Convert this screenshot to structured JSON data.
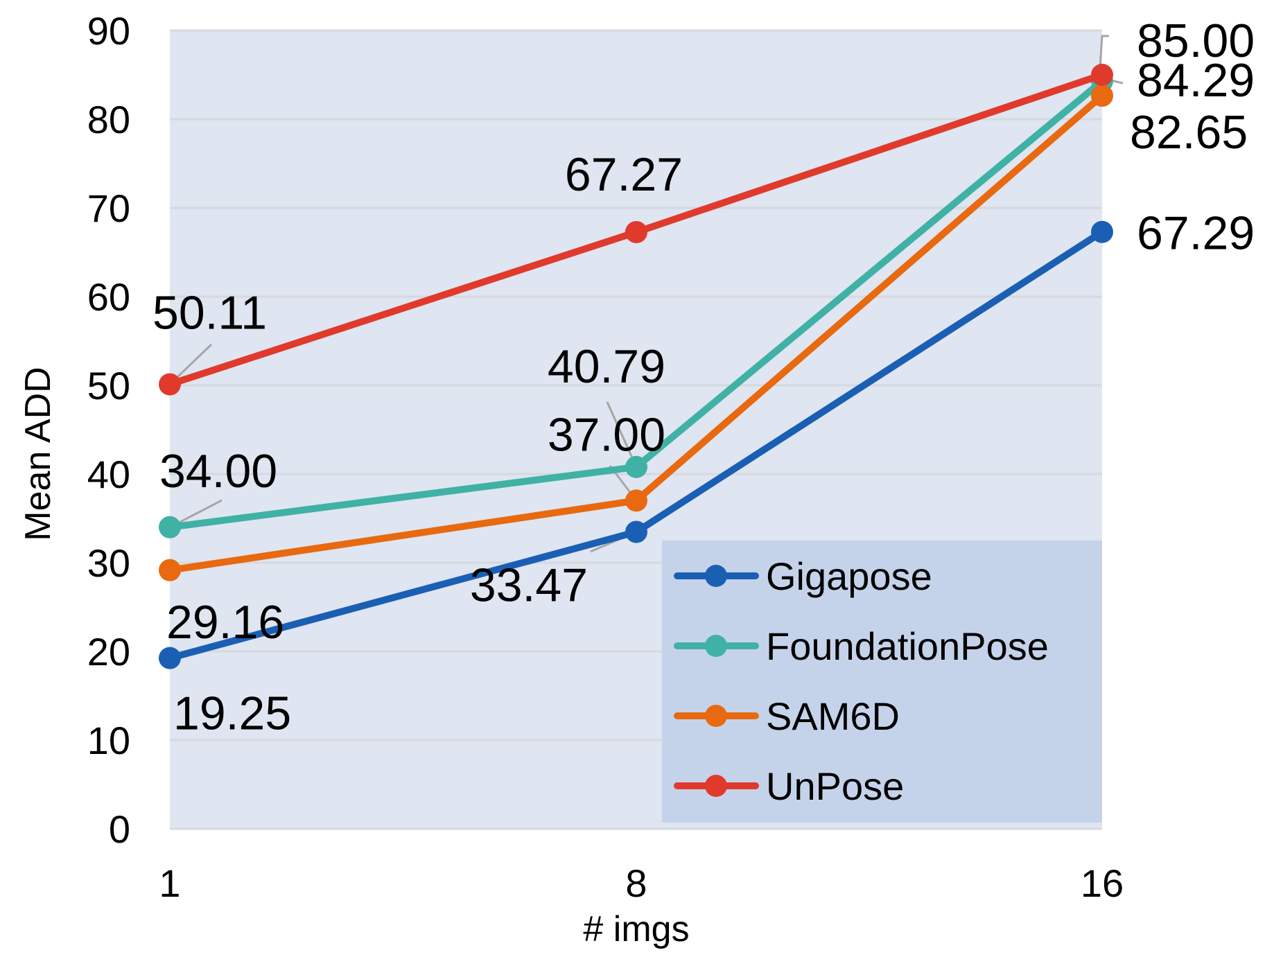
{
  "chart_data": {
    "type": "line",
    "xlabel": "# imgs",
    "ylabel": "Mean ADD",
    "categories": [
      "1",
      "8",
      "16"
    ],
    "ylim": [
      0,
      90
    ],
    "yticks": [
      0,
      10,
      20,
      30,
      40,
      50,
      60,
      70,
      80,
      90
    ],
    "grid": true,
    "legend_position": "bottom-right",
    "plot_background": "#dfe5f1",
    "legend_background": "#c5d3ea",
    "series": [
      {
        "name": "Gigapose",
        "color": "#1a5fb4",
        "values": [
          19.25,
          33.47,
          67.29
        ],
        "labels": [
          "19.25",
          "33.47",
          "67.29"
        ]
      },
      {
        "name": "FoundationPose",
        "color": "#40b1a5",
        "values": [
          34.0,
          40.79,
          84.29
        ],
        "labels": [
          "34.00",
          "40.79",
          "84.29"
        ]
      },
      {
        "name": "SAM6D",
        "color": "#e8690f",
        "values": [
          29.16,
          37.0,
          82.65
        ],
        "labels": [
          "29.16",
          "37.00",
          "82.65"
        ]
      },
      {
        "name": "UnPose",
        "color": "#e03a2c",
        "values": [
          50.11,
          67.27,
          85.0
        ],
        "labels": [
          "50.11",
          "67.27",
          "85.00"
        ]
      }
    ]
  }
}
